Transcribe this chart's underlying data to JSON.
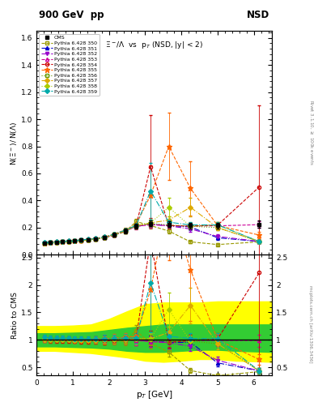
{
  "title_left": "900 GeV  pp",
  "title_right": "NSD",
  "plot_title": "$\\Xi^-/\\Lambda$  vs  p$_T$ (NSD, |y| < 2)",
  "ylabel_main": "N($\\Xi^-$)$_{\\,}$/$_{\\,}$N($\\Lambda$)",
  "ylabel_ratio": "Ratio to CMS",
  "xlabel": "p$_T$ [GeV]",
  "right_label_top": "Rivet 3.1.10, $\\geq$ 100k events",
  "right_label_bot": "mcplots.cern.ch [arXiv:1306.3436]",
  "ylim_main": [
    0.0,
    1.65
  ],
  "ylim_ratio": [
    0.35,
    2.55
  ],
  "xlim": [
    0.0,
    6.5
  ],
  "yticks_main": [
    0.0,
    0.2,
    0.4,
    0.6,
    0.8,
    1.0,
    1.2,
    1.4,
    1.6
  ],
  "yticks_ratio": [
    0.5,
    1.0,
    1.5,
    2.0,
    2.5
  ],
  "xticks": [
    0,
    1,
    2,
    3,
    4,
    5,
    6
  ],
  "cms_x": [
    0.22,
    0.38,
    0.55,
    0.72,
    0.88,
    1.05,
    1.22,
    1.42,
    1.62,
    1.88,
    2.15,
    2.45,
    2.75,
    3.15,
    3.65,
    4.25,
    5.0,
    6.15
  ],
  "cms_y": [
    0.085,
    0.09,
    0.093,
    0.096,
    0.099,
    0.103,
    0.107,
    0.112,
    0.118,
    0.128,
    0.148,
    0.175,
    0.21,
    0.23,
    0.225,
    0.215,
    0.215,
    0.225
  ],
  "cms_yerr": [
    0.007,
    0.007,
    0.007,
    0.007,
    0.007,
    0.008,
    0.008,
    0.009,
    0.01,
    0.011,
    0.013,
    0.016,
    0.02,
    0.022,
    0.022,
    0.022,
    0.022,
    0.025
  ],
  "series": [
    {
      "label": "Pythia 6.428 350",
      "color": "#999900",
      "marker": "s",
      "filled": false,
      "linestyle": "--",
      "x": [
        0.22,
        0.38,
        0.55,
        0.72,
        0.88,
        1.05,
        1.22,
        1.42,
        1.62,
        1.88,
        2.15,
        2.45,
        2.75,
        3.15,
        3.65,
        4.25,
        5.0,
        6.15
      ],
      "y": [
        0.086,
        0.09,
        0.093,
        0.096,
        0.099,
        0.102,
        0.106,
        0.11,
        0.116,
        0.126,
        0.145,
        0.17,
        0.245,
        0.215,
        0.175,
        0.095,
        0.075,
        0.095
      ],
      "yerr": [
        0.004,
        0.004,
        0.004,
        0.004,
        0.004,
        0.004,
        0.005,
        0.005,
        0.006,
        0.008,
        0.01,
        0.013,
        0.022,
        0.02,
        0.018,
        0.01,
        0.009,
        0.012
      ]
    },
    {
      "label": "Pythia 6.428 351",
      "color": "#0000cc",
      "marker": "^",
      "filled": true,
      "linestyle": "-.",
      "x": [
        0.22,
        0.38,
        0.55,
        0.72,
        0.88,
        1.05,
        1.22,
        1.42,
        1.62,
        1.88,
        2.15,
        2.45,
        2.75,
        3.15,
        3.65,
        4.25,
        5.0,
        6.15
      ],
      "y": [
        0.088,
        0.092,
        0.095,
        0.098,
        0.101,
        0.104,
        0.108,
        0.113,
        0.119,
        0.13,
        0.15,
        0.178,
        0.212,
        0.225,
        0.215,
        0.205,
        0.125,
        0.098
      ],
      "yerr": [
        0.004,
        0.004,
        0.004,
        0.004,
        0.004,
        0.004,
        0.005,
        0.005,
        0.006,
        0.008,
        0.01,
        0.013,
        0.02,
        0.022,
        0.022,
        0.022,
        0.014,
        0.012
      ]
    },
    {
      "label": "Pythia 6.428 352",
      "color": "#9900cc",
      "marker": "v",
      "filled": true,
      "linestyle": "-.",
      "x": [
        0.22,
        0.38,
        0.55,
        0.72,
        0.88,
        1.05,
        1.22,
        1.42,
        1.62,
        1.88,
        2.15,
        2.45,
        2.75,
        3.15,
        3.65,
        4.25,
        5.0,
        6.15
      ],
      "y": [
        0.087,
        0.091,
        0.094,
        0.097,
        0.1,
        0.103,
        0.107,
        0.112,
        0.118,
        0.128,
        0.148,
        0.176,
        0.21,
        0.223,
        0.213,
        0.19,
        0.135,
        0.098
      ],
      "yerr": [
        0.004,
        0.004,
        0.004,
        0.004,
        0.004,
        0.004,
        0.005,
        0.005,
        0.006,
        0.008,
        0.01,
        0.013,
        0.02,
        0.022,
        0.022,
        0.02,
        0.014,
        0.012
      ]
    },
    {
      "label": "Pythia 6.428 353",
      "color": "#cc0099",
      "marker": "^",
      "filled": false,
      "linestyle": "--",
      "x": [
        0.22,
        0.38,
        0.55,
        0.72,
        0.88,
        1.05,
        1.22,
        1.42,
        1.62,
        1.88,
        2.15,
        2.45,
        2.75,
        3.15,
        3.65,
        4.25,
        5.0,
        6.15
      ],
      "y": [
        0.086,
        0.09,
        0.093,
        0.096,
        0.099,
        0.102,
        0.106,
        0.111,
        0.117,
        0.127,
        0.147,
        0.175,
        0.208,
        0.222,
        0.215,
        0.212,
        0.213,
        0.222
      ],
      "yerr": [
        0.004,
        0.004,
        0.004,
        0.004,
        0.004,
        0.004,
        0.005,
        0.005,
        0.006,
        0.008,
        0.01,
        0.013,
        0.02,
        0.022,
        0.022,
        0.022,
        0.022,
        0.025
      ]
    },
    {
      "label": "Pythia 6.428 354",
      "color": "#cc0000",
      "marker": "o",
      "filled": false,
      "linestyle": "--",
      "x": [
        0.22,
        0.38,
        0.55,
        0.72,
        0.88,
        1.05,
        1.22,
        1.42,
        1.62,
        1.88,
        2.15,
        2.45,
        2.75,
        3.15,
        3.65,
        4.25,
        5.0,
        6.15
      ],
      "y": [
        0.085,
        0.089,
        0.092,
        0.095,
        0.098,
        0.101,
        0.105,
        0.11,
        0.116,
        0.126,
        0.147,
        0.176,
        0.215,
        0.65,
        0.215,
        0.212,
        0.218,
        0.5
      ],
      "yerr": [
        0.004,
        0.004,
        0.004,
        0.004,
        0.004,
        0.004,
        0.005,
        0.005,
        0.006,
        0.008,
        0.01,
        0.013,
        0.02,
        0.38,
        0.022,
        0.022,
        0.022,
        0.6
      ]
    },
    {
      "label": "Pythia 6.428 355",
      "color": "#ff6600",
      "marker": "*",
      "filled": true,
      "linestyle": "--",
      "x": [
        0.22,
        0.38,
        0.55,
        0.72,
        0.88,
        1.05,
        1.22,
        1.42,
        1.62,
        1.88,
        2.15,
        2.45,
        2.75,
        3.15,
        3.65,
        4.25,
        5.0,
        6.15
      ],
      "y": [
        0.088,
        0.092,
        0.095,
        0.098,
        0.101,
        0.104,
        0.108,
        0.113,
        0.12,
        0.131,
        0.153,
        0.183,
        0.222,
        0.44,
        0.8,
        0.49,
        0.215,
        0.145
      ],
      "yerr": [
        0.004,
        0.004,
        0.004,
        0.004,
        0.004,
        0.004,
        0.005,
        0.005,
        0.006,
        0.008,
        0.011,
        0.014,
        0.021,
        0.22,
        0.25,
        0.2,
        0.022,
        0.022
      ]
    },
    {
      "label": "Pythia 6.428 356",
      "color": "#669900",
      "marker": "s",
      "filled": false,
      "linestyle": ":",
      "x": [
        0.22,
        0.38,
        0.55,
        0.72,
        0.88,
        1.05,
        1.22,
        1.42,
        1.62,
        1.88,
        2.15,
        2.45,
        2.75,
        3.15,
        3.65,
        4.25,
        5.0,
        6.15
      ],
      "y": [
        0.087,
        0.091,
        0.094,
        0.097,
        0.1,
        0.103,
        0.107,
        0.112,
        0.118,
        0.129,
        0.149,
        0.178,
        0.215,
        0.23,
        0.22,
        0.21,
        0.2,
        0.098
      ],
      "yerr": [
        0.004,
        0.004,
        0.004,
        0.004,
        0.004,
        0.004,
        0.005,
        0.005,
        0.006,
        0.008,
        0.01,
        0.013,
        0.02,
        0.022,
        0.022,
        0.022,
        0.022,
        0.012
      ]
    },
    {
      "label": "Pythia 6.428 357",
      "color": "#ddaa00",
      "marker": "D",
      "filled": true,
      "linestyle": "-.",
      "x": [
        0.22,
        0.38,
        0.55,
        0.72,
        0.88,
        1.05,
        1.22,
        1.42,
        1.62,
        1.88,
        2.15,
        2.45,
        2.75,
        3.15,
        3.65,
        4.25,
        5.0,
        6.15
      ],
      "y": [
        0.086,
        0.09,
        0.093,
        0.096,
        0.099,
        0.102,
        0.106,
        0.111,
        0.117,
        0.128,
        0.148,
        0.177,
        0.213,
        0.235,
        0.255,
        0.35,
        0.2,
        0.098
      ],
      "yerr": [
        0.004,
        0.004,
        0.004,
        0.004,
        0.004,
        0.004,
        0.005,
        0.005,
        0.006,
        0.008,
        0.01,
        0.013,
        0.02,
        0.022,
        0.025,
        0.07,
        0.022,
        0.012
      ]
    },
    {
      "label": "Pythia 6.428 358",
      "color": "#aacc00",
      "marker": "D",
      "filled": true,
      "linestyle": ":",
      "x": [
        0.22,
        0.38,
        0.55,
        0.72,
        0.88,
        1.05,
        1.22,
        1.42,
        1.62,
        1.88,
        2.15,
        2.45,
        2.75,
        3.15,
        3.65,
        4.25,
        5.0,
        6.15
      ],
      "y": [
        0.087,
        0.091,
        0.094,
        0.097,
        0.1,
        0.103,
        0.107,
        0.112,
        0.118,
        0.129,
        0.15,
        0.178,
        0.215,
        0.235,
        0.35,
        0.21,
        0.22,
        0.098
      ],
      "yerr": [
        0.004,
        0.004,
        0.004,
        0.004,
        0.004,
        0.004,
        0.005,
        0.005,
        0.006,
        0.008,
        0.01,
        0.013,
        0.02,
        0.022,
        0.07,
        0.022,
        0.022,
        0.012
      ]
    },
    {
      "label": "Pythia 6.428 359",
      "color": "#00aaaa",
      "marker": "D",
      "filled": true,
      "linestyle": "-.",
      "x": [
        0.22,
        0.38,
        0.55,
        0.72,
        0.88,
        1.05,
        1.22,
        1.42,
        1.62,
        1.88,
        2.15,
        2.45,
        2.75,
        3.15,
        3.65,
        4.25,
        5.0,
        6.15
      ],
      "y": [
        0.089,
        0.093,
        0.096,
        0.099,
        0.102,
        0.105,
        0.109,
        0.114,
        0.12,
        0.131,
        0.152,
        0.181,
        0.217,
        0.47,
        0.24,
        0.22,
        0.22,
        0.098
      ],
      "yerr": [
        0.004,
        0.004,
        0.004,
        0.004,
        0.004,
        0.004,
        0.005,
        0.005,
        0.006,
        0.008,
        0.01,
        0.013,
        0.02,
        0.21,
        0.025,
        0.022,
        0.022,
        0.012
      ]
    }
  ],
  "yellow_band": {
    "x": [
      0.0,
      0.5,
      1.0,
      1.5,
      2.0,
      2.5,
      3.0,
      3.5,
      4.0,
      4.5,
      5.0,
      5.5,
      6.5
    ],
    "lo": [
      0.8,
      0.8,
      0.78,
      0.76,
      0.72,
      0.68,
      0.62,
      0.6,
      0.62,
      0.65,
      0.65,
      0.62,
      0.6
    ],
    "hi": [
      1.25,
      1.25,
      1.26,
      1.28,
      1.38,
      1.52,
      1.65,
      1.68,
      1.68,
      1.68,
      1.7,
      1.7,
      1.7
    ]
  },
  "green_band": {
    "x": [
      0.0,
      0.5,
      1.0,
      1.5,
      2.0,
      2.5,
      3.0,
      3.5,
      4.0,
      4.5,
      5.0,
      5.5,
      6.5
    ],
    "lo": [
      0.88,
      0.88,
      0.87,
      0.86,
      0.84,
      0.8,
      0.78,
      0.78,
      0.8,
      0.82,
      0.82,
      0.8,
      0.78
    ],
    "hi": [
      1.12,
      1.12,
      1.13,
      1.14,
      1.18,
      1.22,
      1.25,
      1.28,
      1.28,
      1.28,
      1.28,
      1.28,
      1.28
    ]
  }
}
